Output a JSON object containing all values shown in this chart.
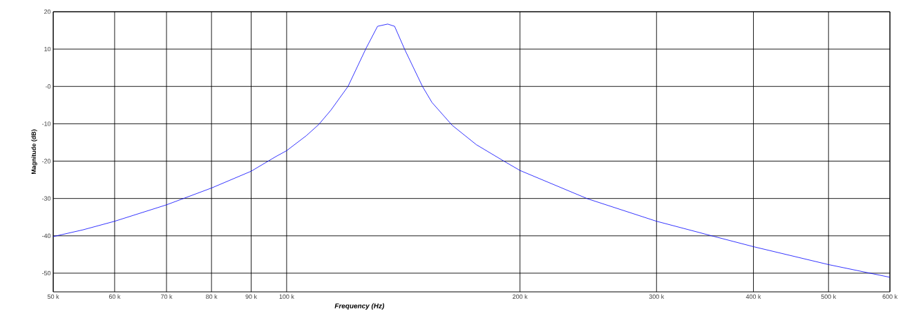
{
  "chart_data": {
    "type": "line",
    "xlabel": "Frequency (Hz)",
    "ylabel": "Magnitude (dB)",
    "log": "x",
    "grid": true,
    "marker": "none",
    "line_style": "solid",
    "xlim": [
      50000,
      600000
    ],
    "ylim": [
      -55,
      20
    ],
    "xticks": [
      {
        "value": 50000,
        "label": "50 k"
      },
      {
        "value": 60000,
        "label": "60 k"
      },
      {
        "value": 70000,
        "label": "70 k"
      },
      {
        "value": 80000,
        "label": "80 k"
      },
      {
        "value": 90000,
        "label": "90 k"
      },
      {
        "value": 100000,
        "label": "100 k"
      },
      {
        "value": 200000,
        "label": "200 k"
      },
      {
        "value": 300000,
        "label": "300 k"
      },
      {
        "value": 400000,
        "label": "400 k"
      },
      {
        "value": 500000,
        "label": "500 k"
      },
      {
        "value": 600000,
        "label": "600 k"
      }
    ],
    "yticks": [
      -50,
      -40,
      -30,
      -20,
      -10,
      {
        "value": 0,
        "label": "-0"
      },
      10,
      20
    ],
    "x": [
      50000,
      54600,
      60000,
      70000,
      80000,
      90000,
      97000,
      100000,
      106000,
      110000,
      114000,
      120000,
      126600,
      131000,
      135000,
      137800,
      142000,
      149700,
      154000,
      163500,
      175700,
      190700,
      200000,
      244600,
      300000,
      355000,
      400000,
      500000,
      600000
    ],
    "series": [
      {
        "color": "#0000ff",
        "values": [
          -40.2,
          -38.4,
          -36.1,
          -31.7,
          -27.2,
          -22.7,
          -18.7,
          -17.2,
          -13.2,
          -10.2,
          -6.4,
          0.0,
          10.2,
          16.1,
          16.7,
          16.1,
          9.9,
          0.0,
          -4.3,
          -10.4,
          -15.6,
          -20.0,
          -22.5,
          -30.1,
          -36.1,
          -40.1,
          -42.9,
          -47.7,
          -51.1
        ]
      }
    ]
  }
}
